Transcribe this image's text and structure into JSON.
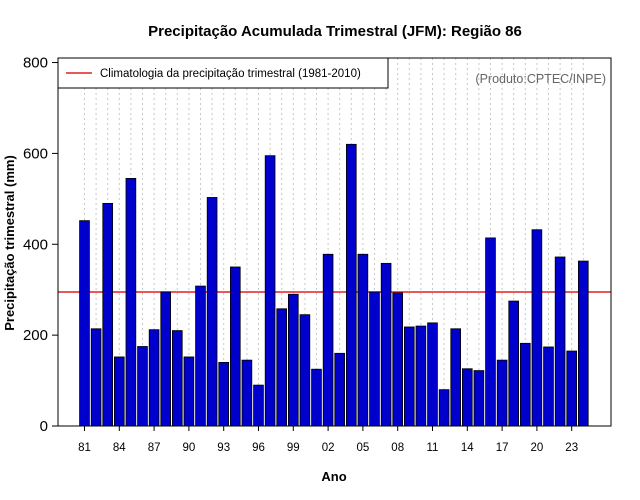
{
  "chart_data": {
    "type": "bar",
    "title": "Precipitação Acumulada Trimestral (JFM): Região 86",
    "xlabel": "Ano",
    "ylabel": "Precipitação trimestral (mm)",
    "ylim": [
      0,
      810
    ],
    "yticks": [
      0,
      200,
      400,
      600,
      800
    ],
    "grid": "vertical dotted",
    "categories": [
      "1981",
      "1982",
      "1983",
      "1984",
      "1985",
      "1986",
      "1987",
      "1988",
      "1989",
      "1990",
      "1991",
      "1992",
      "1993",
      "1994",
      "1995",
      "1996",
      "1997",
      "1998",
      "1999",
      "2000",
      "2001",
      "2002",
      "2003",
      "2004",
      "2005",
      "2006",
      "2007",
      "2008",
      "2009",
      "2010",
      "2011",
      "2012",
      "2013",
      "2014",
      "2015",
      "2016",
      "2017",
      "2018",
      "2019",
      "2020",
      "2021",
      "2022",
      "2023",
      "2024"
    ],
    "xtick_labels": [
      {
        "index": 0,
        "label": "81"
      },
      {
        "index": 3,
        "label": "84"
      },
      {
        "index": 6,
        "label": "87"
      },
      {
        "index": 9,
        "label": "90"
      },
      {
        "index": 12,
        "label": "93"
      },
      {
        "index": 15,
        "label": "96"
      },
      {
        "index": 18,
        "label": "99"
      },
      {
        "index": 21,
        "label": "02"
      },
      {
        "index": 24,
        "label": "05"
      },
      {
        "index": 27,
        "label": "08"
      },
      {
        "index": 30,
        "label": "11"
      },
      {
        "index": 33,
        "label": "14"
      },
      {
        "index": 36,
        "label": "17"
      },
      {
        "index": 39,
        "label": "20"
      },
      {
        "index": 42,
        "label": "23"
      }
    ],
    "values": [
      452,
      214,
      490,
      152,
      545,
      175,
      212,
      295,
      210,
      152,
      308,
      503,
      140,
      350,
      145,
      90,
      595,
      258,
      290,
      245,
      125,
      378,
      160,
      620,
      378,
      295,
      358,
      293,
      218,
      220,
      227,
      80,
      214,
      126,
      122,
      414,
      145,
      275,
      182,
      432,
      174,
      372,
      165,
      363
    ],
    "bar_color": "#0000cd",
    "climatology": {
      "value": 295,
      "label": "Climatologia da precipitação trimestral (1981-2010)",
      "color": "#e02020"
    },
    "legend_position": "top-left",
    "credit": "(Produto:CPTEC/INPE)"
  }
}
